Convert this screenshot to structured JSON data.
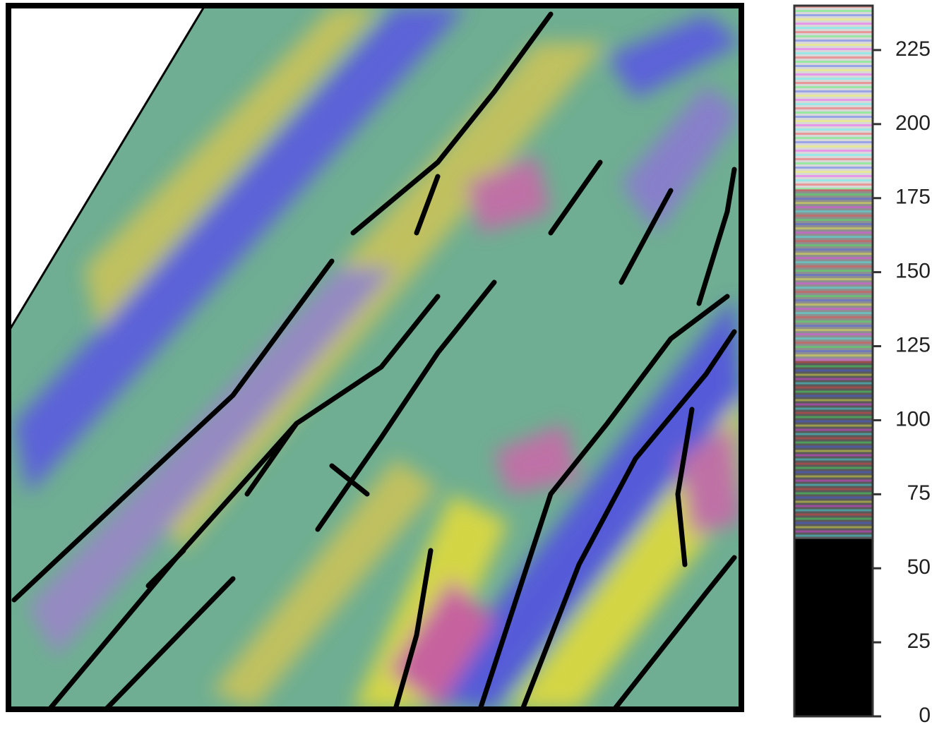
{
  "chart_data": {
    "type": "colorbar-map",
    "colorbar": {
      "lim": [
        0,
        240
      ],
      "ticks": [
        0,
        25,
        50,
        75,
        100,
        125,
        150,
        175,
        200,
        225
      ],
      "segments": [
        {
          "from": 0,
          "to": 60,
          "color": "#000000",
          "stripes": false
        },
        {
          "from": 60,
          "to": 120,
          "color": "#5a5a5a",
          "stripes": true
        },
        {
          "from": 120,
          "to": 178,
          "color": "#8f8f8f",
          "stripes": true
        },
        {
          "from": 178,
          "to": 240,
          "color": "#d8d8d8",
          "stripes": true
        }
      ]
    }
  }
}
